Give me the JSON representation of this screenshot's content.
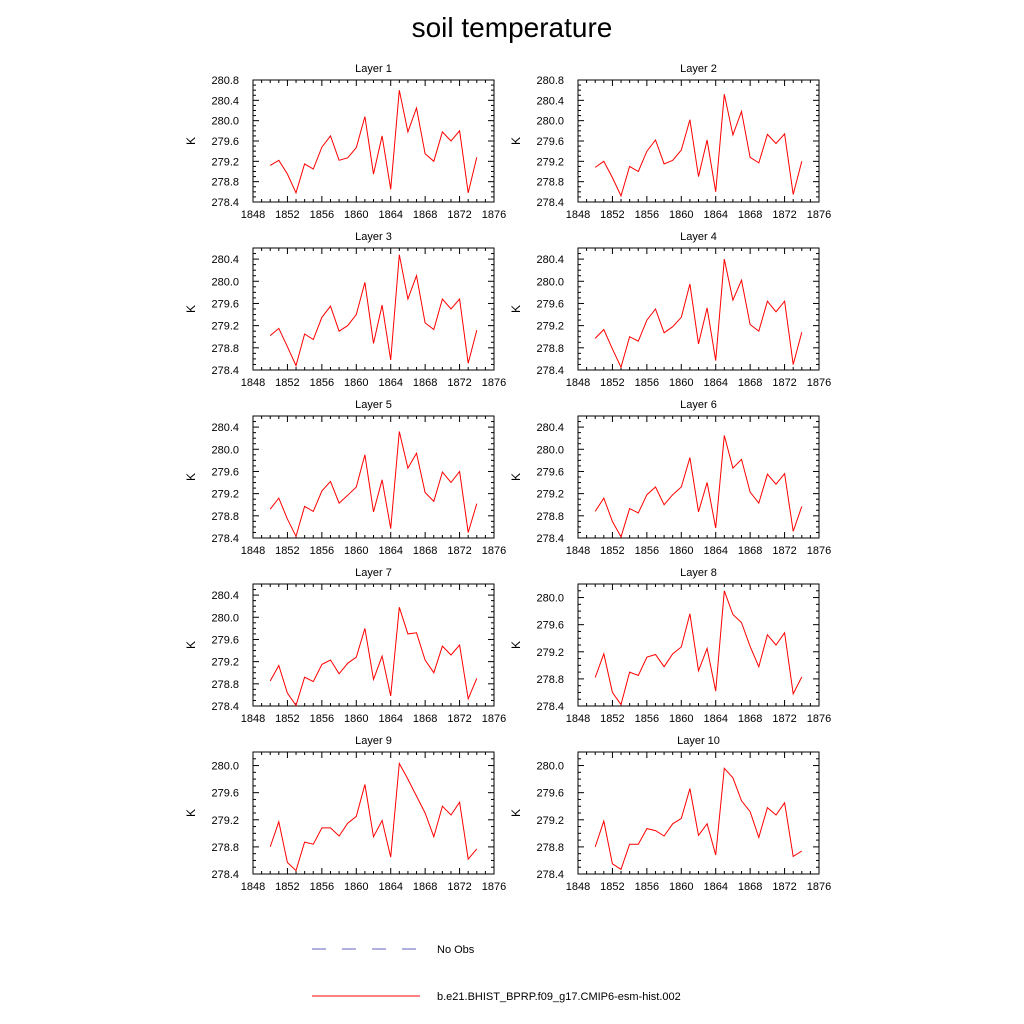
{
  "title": "soil temperature",
  "legend": {
    "items": [
      {
        "label": "No Obs",
        "color": "#6060c0",
        "style": "dashed"
      },
      {
        "label": "b.e21.BHIST_BPRP.f09_g17.CMIP6-esm-hist.002",
        "color": "#ff0000",
        "style": "solid"
      }
    ]
  },
  "chart_data": [
    {
      "type": "line",
      "title": "Layer 1",
      "ylabel": "K",
      "xlim": [
        1848,
        1876
      ],
      "ylim": [
        278.4,
        280.8
      ],
      "xticks": [
        1848,
        1852,
        1856,
        1860,
        1864,
        1868,
        1872,
        1876
      ],
      "yticks": [
        278.4,
        278.8,
        279.2,
        279.6,
        280.0,
        280.4,
        280.8
      ],
      "ytick_labels": [
        "278.4",
        "278.8",
        "279.2",
        "279.6",
        "280.0",
        "280.4",
        "280.8"
      ],
      "series": [
        {
          "name": "b.e21.BHIST_BPRP.f09_g17.CMIP6-esm-hist.002",
          "color": "#ff0000",
          "x": [
            1850,
            1851,
            1852,
            1853,
            1854,
            1855,
            1856,
            1857,
            1858,
            1859,
            1860,
            1861,
            1862,
            1863,
            1864,
            1865,
            1866,
            1867,
            1868,
            1869,
            1870,
            1871,
            1872,
            1873,
            1874
          ],
          "y": [
            279.12,
            279.22,
            278.95,
            278.58,
            279.15,
            279.05,
            279.48,
            279.7,
            279.22,
            279.27,
            279.47,
            280.08,
            278.95,
            279.7,
            278.65,
            280.6,
            279.78,
            280.25,
            279.35,
            279.2,
            279.78,
            279.6,
            279.8,
            278.58,
            279.28
          ]
        }
      ]
    },
    {
      "type": "line",
      "title": "Layer 2",
      "ylabel": "K",
      "xlim": [
        1848,
        1876
      ],
      "ylim": [
        278.4,
        280.8
      ],
      "xticks": [
        1848,
        1852,
        1856,
        1860,
        1864,
        1868,
        1872,
        1876
      ],
      "yticks": [
        278.4,
        278.8,
        279.2,
        279.6,
        280.0,
        280.4,
        280.8
      ],
      "ytick_labels": [
        "278.4",
        "278.8",
        "279.2",
        "279.6",
        "280.0",
        "280.4",
        "280.8"
      ],
      "series": [
        {
          "name": "b.e21.BHIST_BPRP.f09_g17.CMIP6-esm-hist.002",
          "color": "#ff0000",
          "x": [
            1850,
            1851,
            1852,
            1853,
            1854,
            1855,
            1856,
            1857,
            1858,
            1859,
            1860,
            1861,
            1862,
            1863,
            1864,
            1865,
            1866,
            1867,
            1868,
            1869,
            1870,
            1871,
            1872,
            1873,
            1874
          ],
          "y": [
            279.08,
            279.2,
            278.88,
            278.52,
            279.1,
            279.0,
            279.4,
            279.62,
            279.15,
            279.22,
            279.42,
            280.02,
            278.9,
            279.62,
            278.6,
            280.52,
            279.72,
            280.18,
            279.28,
            279.17,
            279.73,
            279.55,
            279.74,
            278.55,
            279.2
          ]
        }
      ]
    },
    {
      "type": "line",
      "title": "Layer 3",
      "ylabel": "K",
      "xlim": [
        1848,
        1876
      ],
      "ylim": [
        278.4,
        280.6
      ],
      "xticks": [
        1848,
        1852,
        1856,
        1860,
        1864,
        1868,
        1872,
        1876
      ],
      "yticks": [
        278.4,
        278.8,
        279.2,
        279.6,
        280.0,
        280.4
      ],
      "ytick_labels": [
        "278.4",
        "278.8",
        "279.2",
        "279.6",
        "280.0",
        "280.4"
      ],
      "series": [
        {
          "name": "b.e21.BHIST_BPRP.f09_g17.CMIP6-esm-hist.002",
          "color": "#ff0000",
          "x": [
            1850,
            1851,
            1852,
            1853,
            1854,
            1855,
            1856,
            1857,
            1858,
            1859,
            1860,
            1861,
            1862,
            1863,
            1864,
            1865,
            1866,
            1867,
            1868,
            1869,
            1870,
            1871,
            1872,
            1873,
            1874
          ],
          "y": [
            279.02,
            279.15,
            278.82,
            278.48,
            279.05,
            278.95,
            279.35,
            279.55,
            279.1,
            279.2,
            279.4,
            279.98,
            278.88,
            279.57,
            278.58,
            280.48,
            279.68,
            280.1,
            279.25,
            279.13,
            279.68,
            279.5,
            279.68,
            278.52,
            279.12
          ]
        }
      ]
    },
    {
      "type": "line",
      "title": "Layer 4",
      "ylabel": "K",
      "xlim": [
        1848,
        1876
      ],
      "ylim": [
        278.4,
        280.6
      ],
      "xticks": [
        1848,
        1852,
        1856,
        1860,
        1864,
        1868,
        1872,
        1876
      ],
      "yticks": [
        278.4,
        278.8,
        279.2,
        279.6,
        280.0,
        280.4
      ],
      "ytick_labels": [
        "278.4",
        "278.8",
        "279.2",
        "279.6",
        "280.0",
        "280.4"
      ],
      "series": [
        {
          "name": "b.e21.BHIST_BPRP.f09_g17.CMIP6-esm-hist.002",
          "color": "#ff0000",
          "x": [
            1850,
            1851,
            1852,
            1853,
            1854,
            1855,
            1856,
            1857,
            1858,
            1859,
            1860,
            1861,
            1862,
            1863,
            1864,
            1865,
            1866,
            1867,
            1868,
            1869,
            1870,
            1871,
            1872,
            1873,
            1874
          ],
          "y": [
            278.97,
            279.13,
            278.78,
            278.45,
            279.0,
            278.92,
            279.3,
            279.5,
            279.07,
            279.18,
            279.35,
            279.95,
            278.87,
            279.52,
            278.57,
            280.4,
            279.66,
            280.02,
            279.22,
            279.1,
            279.64,
            279.45,
            279.64,
            278.5,
            279.08
          ]
        }
      ]
    },
    {
      "type": "line",
      "title": "Layer 5",
      "ylabel": "K",
      "xlim": [
        1848,
        1876
      ],
      "ylim": [
        278.4,
        280.6
      ],
      "xticks": [
        1848,
        1852,
        1856,
        1860,
        1864,
        1868,
        1872,
        1876
      ],
      "yticks": [
        278.4,
        278.8,
        279.2,
        279.6,
        280.0,
        280.4
      ],
      "ytick_labels": [
        "278.4",
        "278.8",
        "279.2",
        "279.6",
        "280.0",
        "280.4"
      ],
      "series": [
        {
          "name": "b.e21.BHIST_BPRP.f09_g17.CMIP6-esm-hist.002",
          "color": "#ff0000",
          "x": [
            1850,
            1851,
            1852,
            1853,
            1854,
            1855,
            1856,
            1857,
            1858,
            1859,
            1860,
            1861,
            1862,
            1863,
            1864,
            1865,
            1866,
            1867,
            1868,
            1869,
            1870,
            1871,
            1872,
            1873,
            1874
          ],
          "y": [
            278.92,
            279.12,
            278.74,
            278.43,
            278.97,
            278.88,
            279.25,
            279.42,
            279.03,
            279.17,
            279.32,
            279.9,
            278.87,
            279.45,
            278.57,
            280.32,
            279.66,
            279.93,
            279.22,
            279.06,
            279.59,
            279.4,
            279.6,
            278.5,
            279.02
          ]
        }
      ]
    },
    {
      "type": "line",
      "title": "Layer 6",
      "ylabel": "K",
      "xlim": [
        1848,
        1876
      ],
      "ylim": [
        278.4,
        280.6
      ],
      "xticks": [
        1848,
        1852,
        1856,
        1860,
        1864,
        1868,
        1872,
        1876
      ],
      "yticks": [
        278.4,
        278.8,
        279.2,
        279.6,
        280.0,
        280.4
      ],
      "ytick_labels": [
        "278.4",
        "278.8",
        "279.2",
        "279.6",
        "280.0",
        "280.4"
      ],
      "series": [
        {
          "name": "b.e21.BHIST_BPRP.f09_g17.CMIP6-esm-hist.002",
          "color": "#ff0000",
          "x": [
            1850,
            1851,
            1852,
            1853,
            1854,
            1855,
            1856,
            1857,
            1858,
            1859,
            1860,
            1861,
            1862,
            1863,
            1864,
            1865,
            1866,
            1867,
            1868,
            1869,
            1870,
            1871,
            1872,
            1873,
            1874
          ],
          "y": [
            278.88,
            279.12,
            278.7,
            278.42,
            278.93,
            278.85,
            279.18,
            279.32,
            279.0,
            279.18,
            279.32,
            279.85,
            278.87,
            279.4,
            278.58,
            280.25,
            279.66,
            279.82,
            279.23,
            279.03,
            279.55,
            279.37,
            279.56,
            278.52,
            278.97
          ]
        }
      ]
    },
    {
      "type": "line",
      "title": "Layer 7",
      "ylabel": "K",
      "xlim": [
        1848,
        1876
      ],
      "ylim": [
        278.4,
        280.6
      ],
      "xticks": [
        1848,
        1852,
        1856,
        1860,
        1864,
        1868,
        1872,
        1876
      ],
      "yticks": [
        278.4,
        278.8,
        279.2,
        279.6,
        280.0,
        280.4
      ],
      "ytick_labels": [
        "278.4",
        "278.8",
        "279.2",
        "279.6",
        "280.0",
        "280.4"
      ],
      "series": [
        {
          "name": "b.e21.BHIST_BPRP.f09_g17.CMIP6-esm-hist.002",
          "color": "#ff0000",
          "x": [
            1850,
            1851,
            1852,
            1853,
            1854,
            1855,
            1856,
            1857,
            1858,
            1859,
            1860,
            1861,
            1862,
            1863,
            1864,
            1865,
            1866,
            1867,
            1868,
            1869,
            1870,
            1871,
            1872,
            1873,
            1874
          ],
          "y": [
            278.85,
            279.13,
            278.63,
            278.41,
            278.92,
            278.84,
            279.15,
            279.23,
            278.98,
            279.17,
            279.28,
            279.8,
            278.88,
            279.3,
            278.58,
            280.18,
            279.7,
            279.72,
            279.23,
            279.0,
            279.48,
            279.32,
            279.5,
            278.53,
            278.9
          ]
        }
      ]
    },
    {
      "type": "line",
      "title": "Layer 8",
      "ylabel": "K",
      "xlim": [
        1848,
        1876
      ],
      "ylim": [
        278.4,
        280.2
      ],
      "xticks": [
        1848,
        1852,
        1856,
        1860,
        1864,
        1868,
        1872,
        1876
      ],
      "yticks": [
        278.4,
        278.8,
        279.2,
        279.6,
        280.0
      ],
      "ytick_labels": [
        "278.4",
        "278.8",
        "279.2",
        "279.6",
        "280.0"
      ],
      "series": [
        {
          "name": "b.e21.BHIST_BPRP.f09_g17.CMIP6-esm-hist.002",
          "color": "#ff0000",
          "x": [
            1850,
            1851,
            1852,
            1853,
            1854,
            1855,
            1856,
            1857,
            1858,
            1859,
            1860,
            1861,
            1862,
            1863,
            1864,
            1865,
            1866,
            1867,
            1868,
            1869,
            1870,
            1871,
            1872,
            1873,
            1874
          ],
          "y": [
            278.82,
            279.17,
            278.6,
            278.42,
            278.9,
            278.85,
            279.12,
            279.16,
            278.98,
            279.17,
            279.27,
            279.76,
            278.92,
            279.25,
            278.62,
            280.1,
            279.75,
            279.63,
            279.28,
            278.98,
            279.45,
            279.3,
            279.48,
            278.58,
            278.83
          ]
        }
      ]
    },
    {
      "type": "line",
      "title": "Layer 9",
      "ylabel": "K",
      "xlim": [
        1848,
        1876
      ],
      "ylim": [
        278.4,
        280.2
      ],
      "xticks": [
        1848,
        1852,
        1856,
        1860,
        1864,
        1868,
        1872,
        1876
      ],
      "yticks": [
        278.4,
        278.8,
        279.2,
        279.6,
        280.0
      ],
      "ytick_labels": [
        "278.4",
        "278.8",
        "279.2",
        "279.6",
        "280.0"
      ],
      "series": [
        {
          "name": "b.e21.BHIST_BPRP.f09_g17.CMIP6-esm-hist.002",
          "color": "#ff0000",
          "x": [
            1850,
            1851,
            1852,
            1853,
            1854,
            1855,
            1856,
            1857,
            1858,
            1859,
            1860,
            1861,
            1862,
            1863,
            1864,
            1865,
            1866,
            1867,
            1868,
            1869,
            1870,
            1871,
            1872,
            1873,
            1874
          ],
          "y": [
            278.8,
            279.17,
            278.57,
            278.45,
            278.87,
            278.84,
            279.08,
            279.08,
            278.96,
            279.15,
            279.25,
            279.72,
            278.95,
            279.19,
            278.65,
            280.03,
            279.8,
            279.55,
            279.3,
            278.95,
            279.4,
            279.27,
            279.46,
            278.62,
            278.77
          ]
        }
      ]
    },
    {
      "type": "line",
      "title": "Layer 10",
      "ylabel": "K",
      "xlim": [
        1848,
        1876
      ],
      "ylim": [
        278.4,
        280.2
      ],
      "xticks": [
        1848,
        1852,
        1856,
        1860,
        1864,
        1868,
        1872,
        1876
      ],
      "yticks": [
        278.4,
        278.8,
        279.2,
        279.6,
        280.0
      ],
      "ytick_labels": [
        "278.4",
        "278.8",
        "279.2",
        "279.6",
        "280.0"
      ],
      "series": [
        {
          "name": "b.e21.BHIST_BPRP.f09_g17.CMIP6-esm-hist.002",
          "color": "#ff0000",
          "x": [
            1850,
            1851,
            1852,
            1853,
            1854,
            1855,
            1856,
            1857,
            1858,
            1859,
            1860,
            1861,
            1862,
            1863,
            1864,
            1865,
            1866,
            1867,
            1868,
            1869,
            1870,
            1871,
            1872,
            1873,
            1874
          ],
          "y": [
            278.8,
            279.18,
            278.55,
            278.47,
            278.84,
            278.84,
            279.07,
            279.04,
            278.96,
            279.14,
            279.22,
            279.66,
            278.97,
            279.14,
            278.68,
            279.96,
            279.82,
            279.48,
            279.32,
            278.94,
            279.38,
            279.27,
            279.45,
            278.66,
            278.74
          ]
        }
      ]
    }
  ]
}
